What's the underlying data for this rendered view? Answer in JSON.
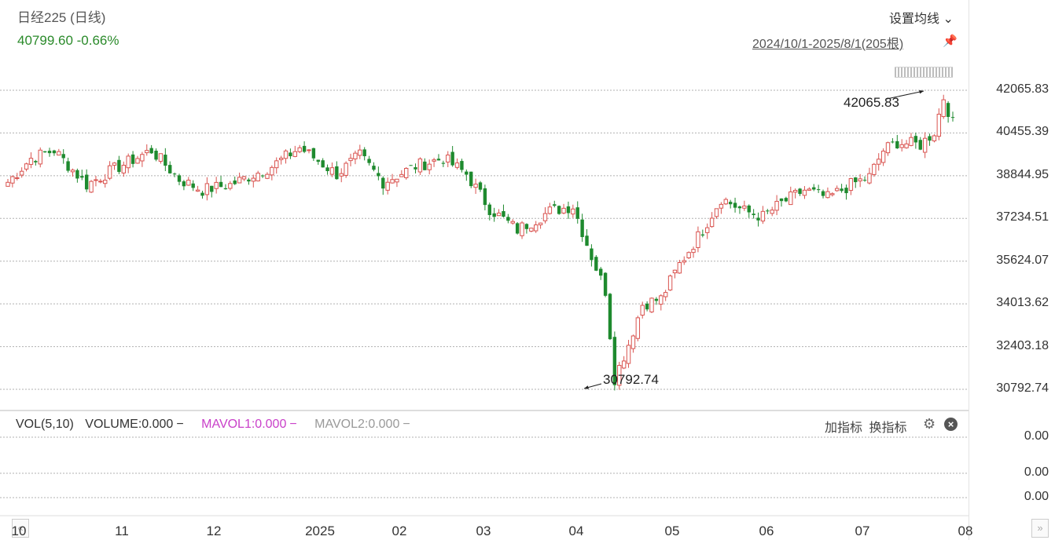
{
  "header": {
    "title": "日经225 (日线)",
    "price": "40799.60",
    "change": "-0.66%",
    "ma_setting": "设置均线",
    "range": "2024/10/1-2025/8/1(205根)"
  },
  "indicator": {
    "vol_label": "VOL(5,10)",
    "volume": "VOLUME:0.000",
    "mavol1": "MAVOL1:0.000",
    "mavol2": "MAVOL2:0.000",
    "add_indicator": "加指标",
    "switch_indicator": "换指标",
    "vol_ticks": [
      "0.00",
      "0.00",
      "0.00"
    ]
  },
  "colors": {
    "up": "#d9534f",
    "down": "#1e8a2e",
    "mavol1": "#c940c9",
    "mavol2": "#999999"
  },
  "chart_data": {
    "type": "candlestick",
    "title": "日经225 (日线)",
    "y_ticks": [
      "42065.83",
      "40455.39",
      "38844.95",
      "37234.51",
      "35624.07",
      "34013.62",
      "32403.18",
      "30792.74"
    ],
    "ylim": [
      30792.74,
      42065.83
    ],
    "x_ticks": [
      "10",
      "11",
      "12",
      "2025",
      "02",
      "03",
      "04",
      "05",
      "06",
      "07",
      "08"
    ],
    "annotations": {
      "high": "42065.83",
      "low": "30792.74"
    },
    "anchors": [
      {
        "i": 0,
        "v": 38600
      },
      {
        "i": 5,
        "v": 39500
      },
      {
        "i": 10,
        "v": 39800
      },
      {
        "i": 17,
        "v": 38500
      },
      {
        "i": 22,
        "v": 39000
      },
      {
        "i": 31,
        "v": 39800
      },
      {
        "i": 37,
        "v": 38700
      },
      {
        "i": 42,
        "v": 38300
      },
      {
        "i": 48,
        "v": 38500
      },
      {
        "i": 57,
        "v": 39200
      },
      {
        "i": 63,
        "v": 39900
      },
      {
        "i": 71,
        "v": 38900
      },
      {
        "i": 76,
        "v": 39600
      },
      {
        "i": 81,
        "v": 38600
      },
      {
        "i": 88,
        "v": 39200
      },
      {
        "i": 94,
        "v": 39500
      },
      {
        "i": 99,
        "v": 38900
      },
      {
        "i": 104,
        "v": 37600
      },
      {
        "i": 110,
        "v": 36800
      },
      {
        "i": 117,
        "v": 37500
      },
      {
        "i": 122,
        "v": 37700
      },
      {
        "i": 126,
        "v": 35800
      },
      {
        "i": 129,
        "v": 34500
      },
      {
        "i": 131,
        "v": 31200
      },
      {
        "i": 134,
        "v": 32500
      },
      {
        "i": 137,
        "v": 34000
      },
      {
        "i": 141,
        "v": 34200
      },
      {
        "i": 145,
        "v": 35500
      },
      {
        "i": 150,
        "v": 36800
      },
      {
        "i": 154,
        "v": 38000
      },
      {
        "i": 159,
        "v": 37500
      },
      {
        "i": 163,
        "v": 37300
      },
      {
        "i": 167,
        "v": 37800
      },
      {
        "i": 172,
        "v": 38300
      },
      {
        "i": 177,
        "v": 38000
      },
      {
        "i": 182,
        "v": 38500
      },
      {
        "i": 186,
        "v": 38800
      },
      {
        "i": 189,
        "v": 39800
      },
      {
        "i": 192,
        "v": 40100
      },
      {
        "i": 197,
        "v": 40000
      },
      {
        "i": 200,
        "v": 40500
      },
      {
        "i": 202,
        "v": 41800
      },
      {
        "i": 204,
        "v": 40800
      }
    ]
  }
}
